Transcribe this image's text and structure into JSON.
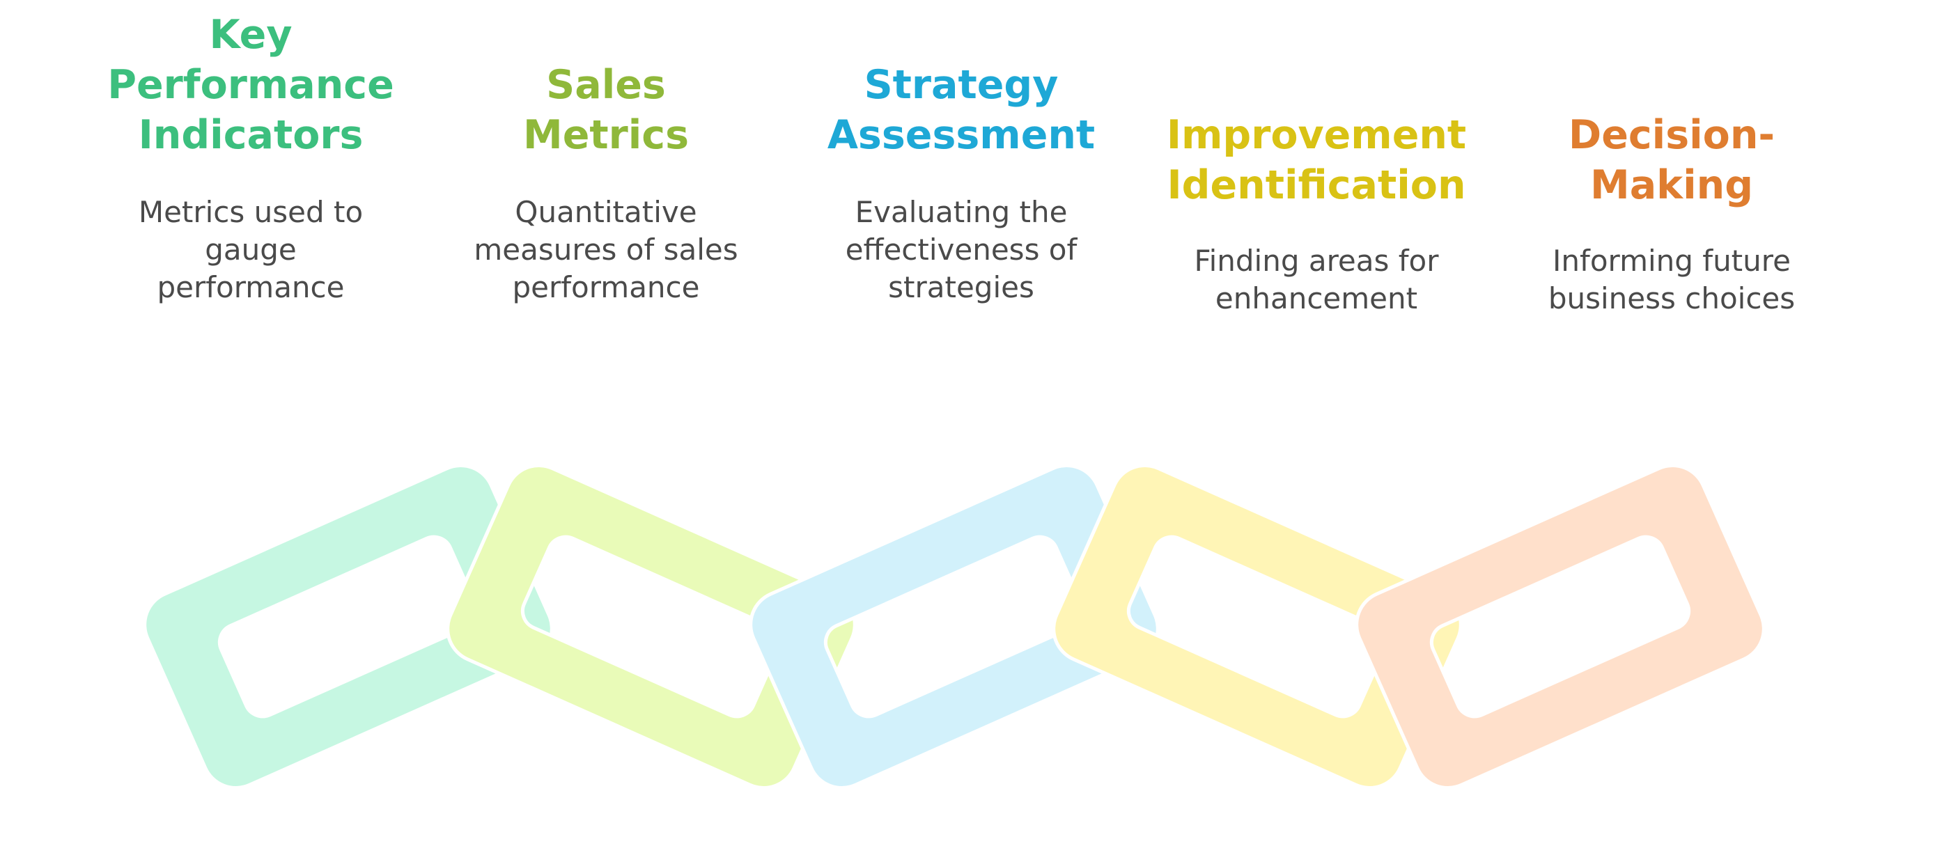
{
  "items": [
    {
      "title": "Key\nPerformance\nIndicators",
      "description": "Metrics used to\ngauge\nperformance",
      "title_color": "#3cbf7e",
      "link_color": "#c6f7e2"
    },
    {
      "title": "Sales\nMetrics",
      "description": "Quantitative\nmeasures of sales\nperformance",
      "title_color": "#8fb83a",
      "link_color": "#e9fbb8"
    },
    {
      "title": "Strategy\nAssessment",
      "description": "Evaluating the\neffectiveness of\nstrategies",
      "title_color": "#1ea8d6",
      "link_color": "#d2f1fb"
    },
    {
      "title": "Improvement\nIdentification",
      "description": "Finding areas for\nenhancement",
      "title_color": "#d9c214",
      "link_color": "#fff5b6"
    },
    {
      "title": "Decision-\nMaking",
      "description": "Informing future\nbusiness choices",
      "title_color": "#df7d30",
      "link_color": "#ffe0cb"
    }
  ]
}
